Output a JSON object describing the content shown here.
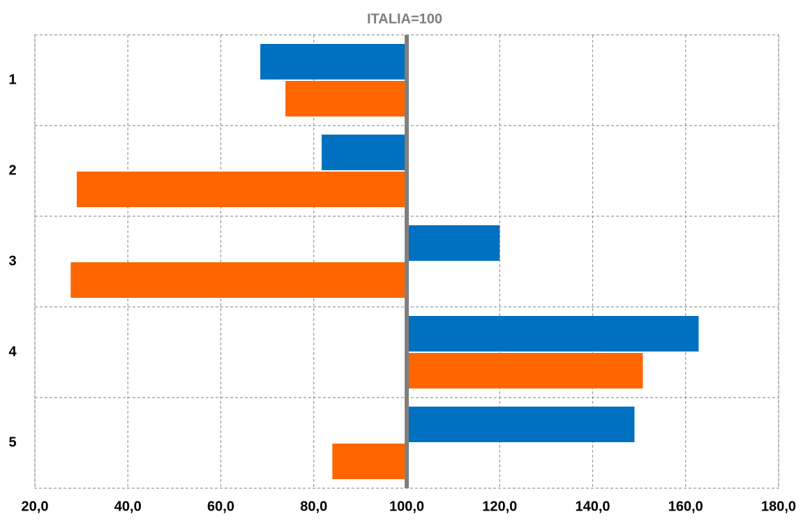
{
  "chart_data": {
    "type": "bar",
    "orientation": "horizontal",
    "title": "ITALIA=100",
    "categories": [
      "1",
      "2",
      "3",
      "4",
      "5"
    ],
    "series": [
      {
        "color": "#0070c0",
        "values": [
          68.5,
          81.7,
          120,
          162.8,
          149
        ]
      },
      {
        "color": "#ff6600",
        "values": [
          73.9,
          29,
          27.7,
          150.8,
          84
        ]
      }
    ],
    "baseline": 100,
    "xlim": [
      20,
      180
    ],
    "xticks": [
      {
        "value": 20,
        "label": "20,0"
      },
      {
        "value": 40,
        "label": "40,0"
      },
      {
        "value": 60,
        "label": "60,0"
      },
      {
        "value": 80,
        "label": "80,0"
      },
      {
        "value": 100,
        "label": "100,0"
      },
      {
        "value": 120,
        "label": "120,0"
      },
      {
        "value": 140,
        "label": "140,0"
      },
      {
        "value": 160,
        "label": "160,0"
      },
      {
        "value": 180,
        "label": "180,0"
      }
    ],
    "grid": true
  }
}
